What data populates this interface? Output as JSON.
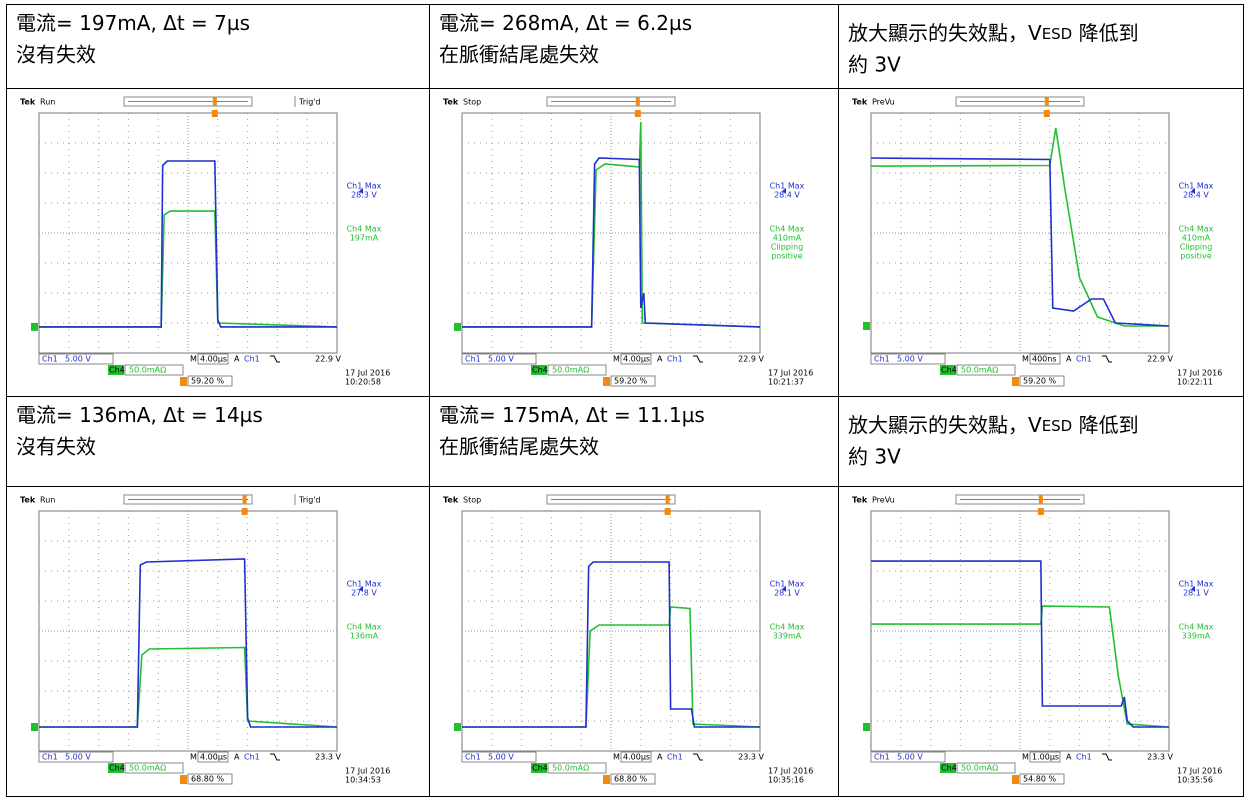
{
  "scope_labels": {
    "brand": "Tek",
    "ch1": "Ch1",
    "ch4": "Ch4",
    "ch1_max": "Ch1 Max",
    "ch4_max": "Ch4 Max",
    "timebase_prefix": "M",
    "trigger_prefix": "A"
  },
  "cells": [
    {
      "header": {
        "line1": [
          "電流= 197mA, Δt = 7µs"
        ],
        "line2": "沒有失效"
      },
      "scope": {
        "status": "Run",
        "trigger_state": "Trig'd",
        "ch1_max": "28.3 V",
        "ch4_max": "197mA",
        "ch1_scale": "5.00 V",
        "ch4_scale": "50.0mAΩ",
        "timebase": "4.00µs",
        "trigger_level": "22.9 V",
        "date": "17 Jul  2016",
        "time": "10:20:58",
        "trigger_position": "59.20 %"
      }
    },
    {
      "header": {
        "line1": [
          "電流= 268mA, Δt = 6.2µs"
        ],
        "line2": "在脈衝結尾處失效"
      },
      "scope": {
        "status": "Stop",
        "ch1_max": "28.4 V",
        "ch4_max": "410mA",
        "ch4_notes": [
          "Clipping",
          "positive"
        ],
        "ch1_scale": "5.00 V",
        "ch4_scale": "50.0mAΩ",
        "timebase": "4.00µs",
        "trigger_level": "22.9 V",
        "date": "17 Jul  2016",
        "time": "10:21:37",
        "trigger_position": "59.20 %"
      }
    },
    {
      "header": {
        "line1": [
          "放大顯示的失效點，V",
          {
            "text": "ESD",
            "small": true
          },
          " 降低到"
        ],
        "line2": "約 3V"
      },
      "scope": {
        "status": "PreVu",
        "ch1_max": "28.4 V",
        "ch4_max": "410mA",
        "ch4_notes": [
          "Clipping",
          "positive"
        ],
        "ch1_scale": "5.00 V",
        "ch4_scale": "50.0mAΩ",
        "timebase": "400ns",
        "trigger_level": "22.9 V",
        "date": "17 Jul  2016",
        "time": "10:22:11",
        "trigger_position": "59.20 %"
      }
    },
    {
      "header": {
        "line1": [
          "電流= 136mA, Δt = 14µs"
        ],
        "line2": "沒有失效"
      },
      "scope": {
        "status": "Run",
        "trigger_state": "Trig'd",
        "ch1_max": "27.8 V",
        "ch4_max": "136mA",
        "ch1_scale": "5.00 V",
        "ch4_scale": "50.0mAΩ",
        "timebase": "4.00µs",
        "trigger_level": "23.3 V",
        "date": "17 Jul  2016",
        "time": "10:34:53",
        "trigger_position": "68.80 %"
      }
    },
    {
      "header": {
        "line1": [
          "電流= 175mA, Δt = 11.1µs"
        ],
        "line2": "在脈衝結尾處失效"
      },
      "scope": {
        "status": "Stop",
        "ch1_max": "28.1 V",
        "ch4_max": "339mA",
        "ch1_scale": "5.00 V",
        "ch4_scale": "50.0mAΩ",
        "timebase": "4.00µs",
        "trigger_level": "23.3 V",
        "date": "17 Jul  2016",
        "time": "10:35:16",
        "trigger_position": "68.80 %"
      }
    },
    {
      "header": {
        "line1": [
          "放大顯示的失效點，V",
          {
            "text": "ESD",
            "small": true
          },
          " 降低到"
        ],
        "line2": "約 3V"
      },
      "scope": {
        "status": "PreVu",
        "ch1_max": "28.1 V",
        "ch4_max": "339mA",
        "ch1_scale": "5.00 V",
        "ch4_scale": "50.0mAΩ",
        "timebase": "1.00µs",
        "trigger_level": "23.3 V",
        "date": "17 Jul  2016",
        "time": "10:35:56",
        "trigger_position": "54.80 %"
      }
    }
  ]
}
